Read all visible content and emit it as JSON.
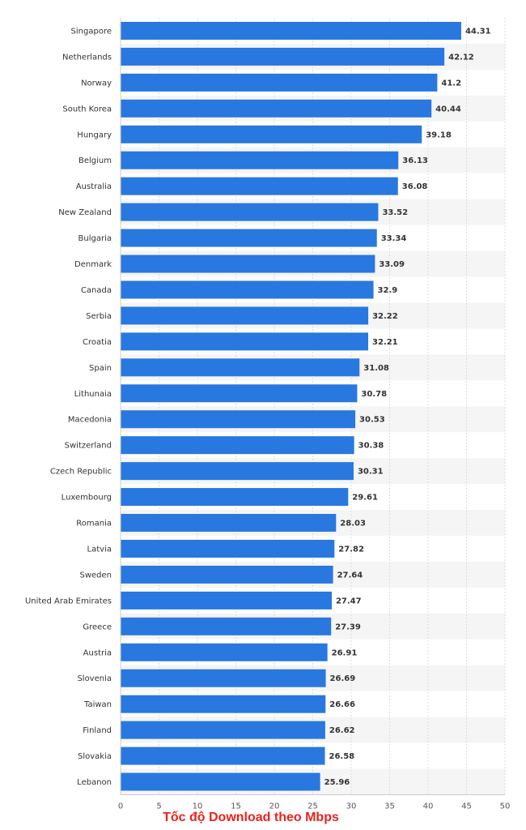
{
  "chart_data": {
    "type": "bar",
    "orientation": "horizontal",
    "categories": [
      "Singapore",
      "Netherlands",
      "Norway",
      "South Korea",
      "Hungary",
      "Belgium",
      "Australia",
      "New Zealand",
      "Bulgaria",
      "Denmark",
      "Canada",
      "Serbia",
      "Croatia",
      "Spain",
      "Lithunaia",
      "Macedonia",
      "Switzerland",
      "Czech Republic",
      "Luxembourg",
      "Romania",
      "Latvia",
      "Sweden",
      "United Arab Emirates",
      "Greece",
      "Austria",
      "Slovenia",
      "Taiwan",
      "Finland",
      "Slovakia",
      "Lebanon"
    ],
    "values": [
      44.31,
      42.12,
      41.2,
      40.44,
      39.18,
      36.13,
      36.08,
      33.52,
      33.34,
      33.09,
      32.9,
      32.22,
      32.21,
      31.08,
      30.78,
      30.53,
      30.38,
      30.31,
      29.61,
      28.03,
      27.82,
      27.64,
      27.47,
      27.39,
      26.91,
      26.69,
      26.66,
      26.62,
      26.58,
      25.96
    ],
    "value_labels": [
      "44.31",
      "42.12",
      "41.2",
      "40.44",
      "39.18",
      "36.13",
      "36.08",
      "33.52",
      "33.34",
      "33.09",
      "32.9",
      "32.22",
      "32.21",
      "31.08",
      "30.78",
      "30.53",
      "30.38",
      "30.31",
      "29.61",
      "28.03",
      "27.82",
      "27.64",
      "27.47",
      "27.39",
      "26.91",
      "26.69",
      "26.66",
      "26.62",
      "26.58",
      "25.96"
    ],
    "x_ticks": [
      "0",
      "5",
      "10",
      "15",
      "20",
      "25",
      "30",
      "35",
      "40",
      "45",
      "50"
    ],
    "xlim": [
      0,
      50
    ],
    "xlabel": "Tốc độ Download theo Mbps",
    "ylabel": "",
    "grid": true,
    "bar_color": "#2878e0",
    "band_color": "#f5f5f5",
    "xlabel_color": "#e8231e"
  }
}
